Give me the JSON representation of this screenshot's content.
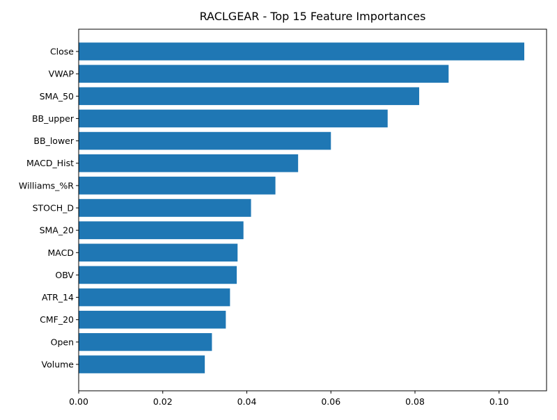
{
  "chart_data": {
    "type": "bar",
    "orientation": "horizontal",
    "title": "RACLGEAR - Top 15 Feature Importances",
    "xlabel": "",
    "ylabel": "",
    "categories": [
      "Close",
      "VWAP",
      "SMA_50",
      "BB_upper",
      "BB_lower",
      "MACD_Hist",
      "Williams_%R",
      "STOCH_D",
      "SMA_20",
      "MACD",
      "OBV",
      "ATR_14",
      "CMF_20",
      "Open",
      "Volume"
    ],
    "values": [
      0.106,
      0.088,
      0.081,
      0.0735,
      0.06,
      0.0522,
      0.0468,
      0.041,
      0.0392,
      0.0378,
      0.0376,
      0.036,
      0.035,
      0.0317,
      0.03
    ],
    "xlim": [
      0,
      0.1113
    ],
    "xticks": [
      0,
      0.02,
      0.04,
      0.06,
      0.08,
      0.1
    ],
    "xtick_labels": [
      "0.00",
      "0.02",
      "0.04",
      "0.06",
      "0.08",
      "0.10"
    ],
    "grid": false,
    "legend": "none",
    "bar_color": "#1f77b4"
  }
}
